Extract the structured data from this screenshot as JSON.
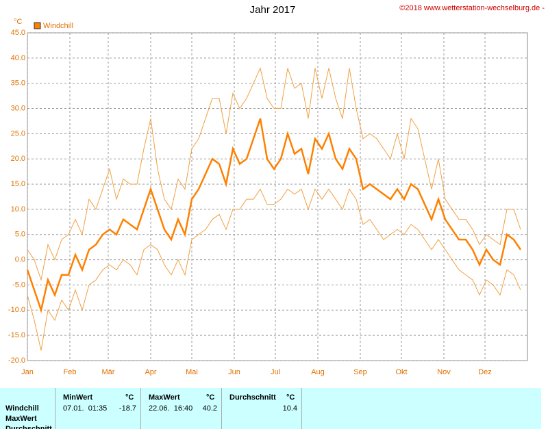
{
  "chart_data": {
    "type": "line",
    "title": "Jahr 2017",
    "credit": "©2018 www.wetterstation-wechselburg.de -",
    "y_unit": "°C",
    "legend": "top-left",
    "grid": true,
    "x": [
      0,
      5,
      10,
      15,
      20,
      25,
      30,
      35,
      40,
      45,
      50,
      55,
      60,
      65,
      70,
      75,
      80,
      85,
      90,
      95,
      100,
      105,
      110,
      115,
      120,
      125,
      130,
      135,
      140,
      145,
      150,
      155,
      160,
      165,
      170,
      175,
      180,
      185,
      190,
      195,
      200,
      205,
      210,
      215,
      220,
      225,
      230,
      235,
      240,
      245,
      250,
      255,
      260,
      265,
      270,
      275,
      280,
      285,
      290,
      295,
      300,
      305,
      310,
      315,
      320,
      325,
      330,
      335,
      340,
      345,
      350,
      355,
      360
    ],
    "xlim": [
      0,
      365
    ],
    "xticks": [
      {
        "value": 0,
        "label": "Jan"
      },
      {
        "value": 31,
        "label": "Feb"
      },
      {
        "value": 59,
        "label": "Mär"
      },
      {
        "value": 90,
        "label": "Apr"
      },
      {
        "value": 120,
        "label": "Mai"
      },
      {
        "value": 151,
        "label": "Jun"
      },
      {
        "value": 181,
        "label": "Jul"
      },
      {
        "value": 212,
        "label": "Aug"
      },
      {
        "value": 243,
        "label": "Sep"
      },
      {
        "value": 273,
        "label": "Okt"
      },
      {
        "value": 304,
        "label": "Nov"
      },
      {
        "value": 334,
        "label": "Dez"
      }
    ],
    "ylim": [
      -20,
      45
    ],
    "yticks": [
      {
        "value": 45,
        "label": "45.0"
      },
      {
        "value": 40,
        "label": "40.0"
      },
      {
        "value": 35,
        "label": "35.0"
      },
      {
        "value": 30,
        "label": "30.0"
      },
      {
        "value": 25,
        "label": "25.0"
      },
      {
        "value": 20,
        "label": "20.0"
      },
      {
        "value": 15,
        "label": "15.0"
      },
      {
        "value": 10,
        "label": "10.0"
      },
      {
        "value": 5,
        "label": "5.0"
      },
      {
        "value": 0,
        "label": "0.0"
      },
      {
        "value": -5,
        "label": "-5.0"
      },
      {
        "value": -10,
        "label": "-10.0"
      },
      {
        "value": -15,
        "label": "-15.0"
      },
      {
        "value": -20,
        "label": "-20.0"
      }
    ],
    "series": [
      {
        "name": "Windchill",
        "color": "#ff8000",
        "width": 2.5,
        "values": [
          -2,
          -6,
          -10,
          -4,
          -7,
          -3,
          -3,
          1,
          -2,
          2,
          3,
          5,
          6,
          5,
          8,
          7,
          6,
          10,
          14,
          10,
          6,
          4,
          8,
          5,
          12,
          14,
          17,
          20,
          19,
          15,
          22,
          19,
          20,
          24,
          28,
          20,
          18,
          20,
          25,
          21,
          22,
          17,
          24,
          22,
          25,
          20,
          18,
          22,
          20,
          14,
          15,
          14,
          13,
          12,
          14,
          12,
          15,
          14,
          11,
          8,
          12,
          8,
          6,
          4,
          4,
          2,
          -1,
          2,
          0,
          -1,
          5,
          4,
          2
        ]
      },
      {
        "color": "#f0a040",
        "width": 1,
        "values": [
          2,
          0,
          -4,
          3,
          0,
          4,
          5,
          8,
          5,
          12,
          10,
          14,
          18,
          12,
          16,
          15,
          15,
          22,
          28,
          18,
          12,
          10,
          16,
          14,
          22,
          24,
          28,
          32,
          32,
          25,
          33,
          30,
          32,
          35,
          38,
          32,
          30,
          30,
          38,
          34,
          35,
          28,
          38,
          32,
          38,
          32,
          28,
          38,
          30,
          24,
          25,
          24,
          22,
          20,
          25,
          20,
          28,
          26,
          20,
          14,
          20,
          12,
          10,
          8,
          8,
          6,
          3,
          5,
          4,
          3,
          10,
          10,
          6
        ]
      },
      {
        "color": "#f0a040",
        "width": 1,
        "values": [
          -7,
          -12,
          -18,
          -10,
          -12,
          -8,
          -10,
          -6,
          -10,
          -5,
          -4,
          -2,
          -1,
          -2,
          0,
          -1,
          -3,
          2,
          3,
          2,
          -1,
          -3,
          0,
          -3,
          4,
          5,
          6,
          8,
          9,
          6,
          10,
          10,
          12,
          12,
          14,
          11,
          11,
          12,
          14,
          13,
          14,
          10,
          14,
          12,
          14,
          12,
          10,
          14,
          12,
          7,
          8,
          6,
          4,
          5,
          6,
          5,
          7,
          6,
          4,
          2,
          4,
          2,
          0,
          -2,
          -3,
          -4,
          -7,
          -4,
          -5,
          -7,
          -2,
          -3,
          -6
        ]
      }
    ]
  },
  "table": {
    "rows": [
      "Windchill",
      "MaxWert",
      "Durchschnitt"
    ],
    "columns": [
      {
        "name": "MinWert",
        "unit": "°C",
        "time": "07.01.  01:35",
        "value": -18.7
      },
      {
        "name": "MaxWert",
        "unit": "°C",
        "time": "22.06.  16:40",
        "value": 40.2
      },
      {
        "name": "Durchschnitt",
        "unit": "°C",
        "value": 10.4
      }
    ]
  }
}
